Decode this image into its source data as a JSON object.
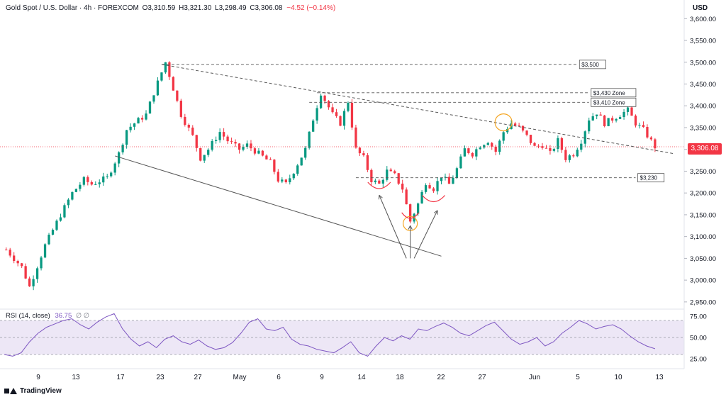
{
  "header": {
    "symbol": "Gold Spot / U.S. Dollar · 4h · FOREXCOM",
    "open": "O3,310.59",
    "high": "H3,321.30",
    "low": "L3,298.49",
    "close": "C3,306.08",
    "change": "−4.52 (−0.14%)"
  },
  "currency": "USD",
  "last_price_label": "3,306.08",
  "rsi_header": {
    "label": "RSI (14, close)",
    "value": "36.75",
    "extra": "∅ ∅"
  },
  "brand": "TradingView",
  "colors": {
    "up": "#089981",
    "down": "#f23645",
    "rsi": "#7e57c2",
    "rsi_band": "#ede7f6",
    "zone_circle": "#f5a623",
    "curve": "#f23645"
  },
  "chart_data": [
    {
      "type": "candlestick",
      "title": "Gold Spot / U.S. Dollar · 4h · FOREXCOM",
      "y_axis": {
        "range": [
          2940,
          3620
        ],
        "ticks": [
          3600,
          3550,
          3500,
          3450,
          3400,
          3350,
          3300,
          3250,
          3200,
          3150,
          3100,
          3050,
          3000,
          2950
        ],
        "tick_labels": [
          "3,600.00",
          "3,550.00",
          "3,500.00",
          "3,450.00",
          "3,400.00",
          "3,350.00",
          "3,300.00",
          "3,250.00",
          "3,200.00",
          "3,150.00",
          "3,100.00",
          "3,050.00",
          "3,000.00",
          "2,950.00"
        ]
      },
      "x_axis": {
        "labels": [
          "9",
          "13",
          "17",
          "23",
          "27",
          "May",
          "6",
          "9",
          "14",
          "18",
          "22",
          "27",
          "Jun",
          "5",
          "10",
          "13"
        ]
      },
      "price_path": [
        [
          0,
          3070
        ],
        [
          4,
          3030
        ],
        [
          6,
          2985
        ],
        [
          10,
          3080
        ],
        [
          14,
          3150
        ],
        [
          17,
          3200
        ],
        [
          20,
          3230
        ],
        [
          22,
          3220
        ],
        [
          26,
          3235
        ],
        [
          29,
          3290
        ],
        [
          31,
          3345
        ],
        [
          33,
          3360
        ],
        [
          36,
          3380
        ],
        [
          38,
          3430
        ],
        [
          41,
          3500
        ],
        [
          43,
          3440
        ],
        [
          45,
          3380
        ],
        [
          48,
          3330
        ],
        [
          50,
          3280
        ],
        [
          52,
          3300
        ],
        [
          55,
          3340
        ],
        [
          57,
          3320
        ],
        [
          60,
          3300
        ],
        [
          62,
          3310
        ],
        [
          65,
          3290
        ],
        [
          68,
          3270
        ],
        [
          70,
          3230
        ],
        [
          72,
          3220
        ],
        [
          74,
          3250
        ],
        [
          77,
          3300
        ],
        [
          79,
          3370
        ],
        [
          81,
          3430
        ],
        [
          84,
          3380
        ],
        [
          86,
          3360
        ],
        [
          88,
          3410
        ],
        [
          90,
          3300
        ],
        [
          92,
          3280
        ],
        [
          94,
          3230
        ],
        [
          96,
          3220
        ],
        [
          98,
          3250
        ],
        [
          100,
          3240
        ],
        [
          102,
          3210
        ],
        [
          104,
          3135
        ],
        [
          106,
          3175
        ],
        [
          108,
          3225
        ],
        [
          110,
          3210
        ],
        [
          112,
          3240
        ],
        [
          114,
          3220
        ],
        [
          116,
          3255
        ],
        [
          118,
          3300
        ],
        [
          120,
          3290
        ],
        [
          122,
          3310
        ],
        [
          124,
          3320
        ],
        [
          126,
          3295
        ],
        [
          128,
          3340
        ],
        [
          130,
          3360
        ],
        [
          132,
          3350
        ],
        [
          134,
          3330
        ],
        [
          136,
          3305
        ],
        [
          138,
          3310
        ],
        [
          140,
          3290
        ],
        [
          142,
          3320
        ],
        [
          144,
          3280
        ],
        [
          146,
          3290
        ],
        [
          148,
          3320
        ],
        [
          150,
          3370
        ],
        [
          152,
          3385
        ],
        [
          154,
          3360
        ],
        [
          156,
          3370
        ],
        [
          158,
          3380
        ],
        [
          160,
          3390
        ],
        [
          162,
          3360
        ],
        [
          164,
          3345
        ],
        [
          167,
          3306
        ]
      ],
      "trendlines": [
        {
          "name": "upper-trendline",
          "points": [
            [
              40,
              3495
            ],
            [
              172,
              3290
            ]
          ],
          "style": "dashed"
        },
        {
          "name": "lower-trendline",
          "points": [
            [
              28,
              3285
            ],
            [
              112,
              3055
            ]
          ],
          "style": "solid"
        }
      ],
      "levels": [
        {
          "label": "$3,500",
          "y": 3495
        },
        {
          "label": "$3,430 Zone",
          "y": 3430
        },
        {
          "label": "$3,410 Zone",
          "y": 3408
        },
        {
          "label": "$3,230",
          "y": 3235
        }
      ],
      "last_price": 3306.08
    },
    {
      "type": "line",
      "title": "RSI (14, close)",
      "y_axis": {
        "range": [
          20,
          80
        ],
        "ticks": [
          75,
          50,
          25
        ],
        "tick_labels": [
          "75.00",
          "50.00",
          "25.00"
        ]
      },
      "band": [
        30,
        70
      ],
      "series": [
        {
          "name": "RSI",
          "values": [
            30,
            28,
            32,
            45,
            55,
            62,
            66,
            70,
            72,
            65,
            60,
            68,
            74,
            78,
            60,
            48,
            40,
            45,
            38,
            48,
            52,
            45,
            42,
            47,
            40,
            36,
            38,
            44,
            55,
            68,
            72,
            60,
            58,
            62,
            48,
            42,
            40,
            36,
            34,
            32,
            38,
            45,
            32,
            28,
            40,
            50,
            46,
            52,
            48,
            60,
            58,
            63,
            67,
            62,
            55,
            52,
            58,
            64,
            68,
            58,
            48,
            42,
            45,
            50,
            40,
            45,
            55,
            62,
            70,
            66,
            60,
            63,
            65,
            60,
            52,
            45,
            40,
            36.75
          ]
        }
      ]
    }
  ]
}
